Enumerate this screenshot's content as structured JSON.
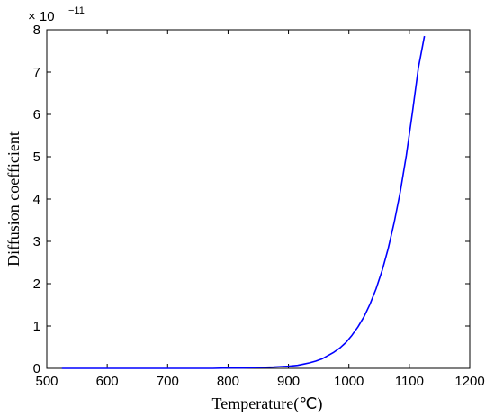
{
  "chart_data": {
    "type": "line",
    "title": "",
    "xlabel": "Temperature(℃)",
    "ylabel": "Diffusion coefficient",
    "y_multiplier_label": "× 10",
    "y_multiplier_exponent": "−11",
    "xlim": [
      500,
      1200
    ],
    "ylim": [
      0,
      8
    ],
    "x_ticks": [
      500,
      600,
      700,
      800,
      900,
      1000,
      1100,
      1200
    ],
    "y_ticks": [
      0,
      1,
      2,
      3,
      4,
      5,
      6,
      7,
      8
    ],
    "grid": false,
    "legend": false,
    "series": [
      {
        "color": "#0000ff",
        "x": [
          525,
          550,
          575,
          600,
          625,
          650,
          675,
          700,
          725,
          750,
          775,
          800,
          825,
          850,
          875,
          900,
          915,
          925,
          935,
          945,
          955,
          965,
          975,
          985,
          995,
          1005,
          1015,
          1025,
          1035,
          1045,
          1055,
          1065,
          1075,
          1085,
          1095,
          1105,
          1115,
          1125
        ],
        "y": [
          0,
          0,
          0,
          0,
          0,
          0,
          0,
          0,
          0.0,
          0.0,
          0.0,
          0.01,
          0.01,
          0.02,
          0.03,
          0.05,
          0.07,
          0.1,
          0.13,
          0.17,
          0.22,
          0.3,
          0.38,
          0.48,
          0.61,
          0.78,
          0.98,
          1.22,
          1.52,
          1.88,
          2.31,
          2.83,
          3.45,
          4.17,
          5.03,
          6.03,
          7.1,
          7.85
        ]
      }
    ]
  }
}
